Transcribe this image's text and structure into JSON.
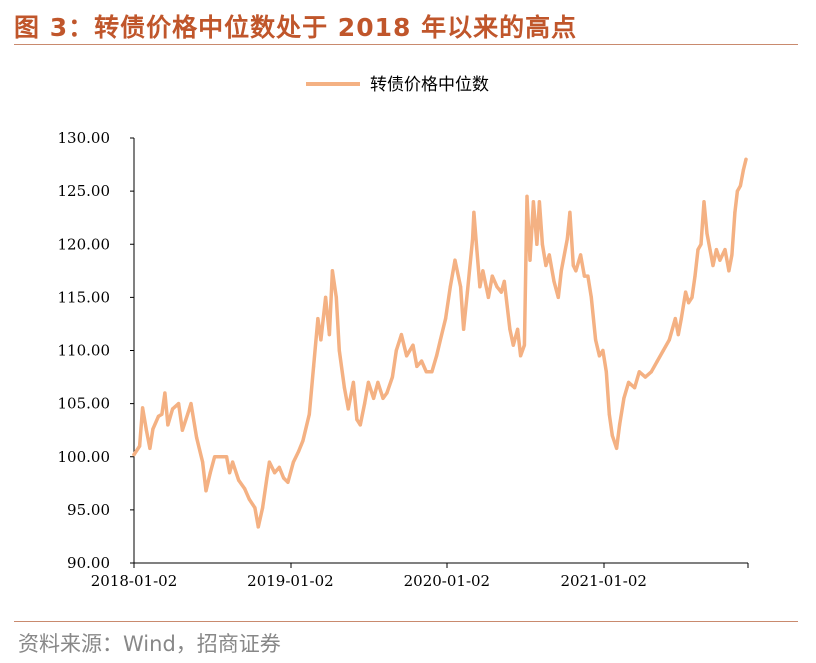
{
  "figure": {
    "title": "图 3：转债价格中位数处于 2018 年以来的高点",
    "source": "资料来源：Wind，招商证券"
  },
  "colors": {
    "accent": "#c0562b",
    "line": "#f4b183",
    "rule": "#c98a6e",
    "source_text": "#888888"
  },
  "chart_data": {
    "type": "line",
    "title": "",
    "xlabel": "",
    "ylabel": "",
    "ylim": [
      90,
      130
    ],
    "yticks": [
      "90.00",
      "95.00",
      "100.00",
      "105.00",
      "110.00",
      "115.00",
      "120.00",
      "125.00",
      "130.00"
    ],
    "xticks": [
      "2018-01-02",
      "2019-01-02",
      "2020-01-02",
      "2021-01-02"
    ],
    "legend_position": "top-center",
    "grid": false,
    "series": [
      {
        "name": "转债价格中位数",
        "points": [
          [
            "2018-01-02",
            100.2
          ],
          [
            "2018-01-15",
            101.0
          ],
          [
            "2018-01-22",
            104.6
          ],
          [
            "2018-01-31",
            102.5
          ],
          [
            "2018-02-08",
            100.8
          ],
          [
            "2018-02-15",
            102.6
          ],
          [
            "2018-02-28",
            103.8
          ],
          [
            "2018-03-08",
            104.0
          ],
          [
            "2018-03-15",
            106.0
          ],
          [
            "2018-03-22",
            103.0
          ],
          [
            "2018-04-02",
            104.5
          ],
          [
            "2018-04-16",
            105.0
          ],
          [
            "2018-04-25",
            102.5
          ],
          [
            "2018-05-07",
            104.0
          ],
          [
            "2018-05-15",
            105.0
          ],
          [
            "2018-05-28",
            101.8
          ],
          [
            "2018-06-11",
            99.5
          ],
          [
            "2018-06-19",
            96.8
          ],
          [
            "2018-06-29",
            98.5
          ],
          [
            "2018-07-09",
            100.0
          ],
          [
            "2018-07-23",
            100.0
          ],
          [
            "2018-08-06",
            100.0
          ],
          [
            "2018-08-13",
            98.5
          ],
          [
            "2018-08-20",
            99.5
          ],
          [
            "2018-09-03",
            97.8
          ],
          [
            "2018-09-17",
            97.0
          ],
          [
            "2018-09-28",
            96.0
          ],
          [
            "2018-10-11",
            95.2
          ],
          [
            "2018-10-19",
            93.4
          ],
          [
            "2018-10-29",
            95.2
          ],
          [
            "2018-11-08",
            98.0
          ],
          [
            "2018-11-14",
            99.5
          ],
          [
            "2018-11-26",
            98.5
          ],
          [
            "2018-12-07",
            99.0
          ],
          [
            "2018-12-17",
            98.0
          ],
          [
            "2018-12-27",
            97.6
          ],
          [
            "2019-01-09",
            99.5
          ],
          [
            "2019-01-21",
            100.5
          ],
          [
            "2019-01-31",
            101.5
          ],
          [
            "2019-02-15",
            104.0
          ],
          [
            "2019-02-25",
            108.5
          ],
          [
            "2019-03-07",
            113.0
          ],
          [
            "2019-03-14",
            111.0
          ],
          [
            "2019-03-25",
            115.0
          ],
          [
            "2019-04-03",
            111.5
          ],
          [
            "2019-04-10",
            117.5
          ],
          [
            "2019-04-19",
            115.0
          ],
          [
            "2019-04-26",
            110.0
          ],
          [
            "2019-05-08",
            106.5
          ],
          [
            "2019-05-17",
            104.5
          ],
          [
            "2019-05-29",
            107.0
          ],
          [
            "2019-06-06",
            103.5
          ],
          [
            "2019-06-14",
            103.0
          ],
          [
            "2019-06-24",
            105.0
          ],
          [
            "2019-07-03",
            107.0
          ],
          [
            "2019-07-15",
            105.5
          ],
          [
            "2019-07-25",
            107.0
          ],
          [
            "2019-08-06",
            105.5
          ],
          [
            "2019-08-15",
            106.0
          ],
          [
            "2019-08-28",
            107.5
          ],
          [
            "2019-09-06",
            110.0
          ],
          [
            "2019-09-18",
            111.5
          ],
          [
            "2019-09-30",
            109.5
          ],
          [
            "2019-10-15",
            110.5
          ],
          [
            "2019-10-24",
            108.5
          ],
          [
            "2019-11-04",
            109.0
          ],
          [
            "2019-11-15",
            108.0
          ],
          [
            "2019-11-28",
            108.0
          ],
          [
            "2019-12-09",
            109.5
          ],
          [
            "2019-12-18",
            111.0
          ],
          [
            "2019-12-30",
            113.0
          ],
          [
            "2020-01-10",
            116.0
          ],
          [
            "2020-01-21",
            118.5
          ],
          [
            "2020-02-03",
            116.0
          ],
          [
            "2020-02-10",
            112.0
          ],
          [
            "2020-02-19",
            115.5
          ],
          [
            "2020-03-02",
            120.5
          ],
          [
            "2020-03-05",
            123.0
          ],
          [
            "2020-03-11",
            120.0
          ],
          [
            "2020-03-19",
            116.0
          ],
          [
            "2020-03-26",
            117.5
          ],
          [
            "2020-04-08",
            115.0
          ],
          [
            "2020-04-17",
            117.0
          ],
          [
            "2020-04-28",
            116.0
          ],
          [
            "2020-05-08",
            115.5
          ],
          [
            "2020-05-15",
            116.5
          ],
          [
            "2020-05-28",
            112.0
          ],
          [
            "2020-06-05",
            110.5
          ],
          [
            "2020-06-15",
            112.0
          ],
          [
            "2020-06-22",
            109.5
          ],
          [
            "2020-07-01",
            110.5
          ],
          [
            "2020-07-07",
            124.5
          ],
          [
            "2020-07-14",
            118.5
          ],
          [
            "2020-07-22",
            124.0
          ],
          [
            "2020-07-30",
            120.0
          ],
          [
            "2020-08-05",
            124.0
          ],
          [
            "2020-08-12",
            120.0
          ],
          [
            "2020-08-20",
            118.0
          ],
          [
            "2020-08-28",
            119.0
          ],
          [
            "2020-09-08",
            116.5
          ],
          [
            "2020-09-18",
            115.0
          ],
          [
            "2020-09-25",
            117.5
          ],
          [
            "2020-10-09",
            120.5
          ],
          [
            "2020-10-15",
            123.0
          ],
          [
            "2020-10-23",
            118.0
          ],
          [
            "2020-10-29",
            117.5
          ],
          [
            "2020-11-09",
            119.0
          ],
          [
            "2020-11-18",
            117.0
          ],
          [
            "2020-11-26",
            117.0
          ],
          [
            "2020-12-04",
            115.0
          ],
          [
            "2020-12-14",
            111.0
          ],
          [
            "2020-12-23",
            109.5
          ],
          [
            "2020-12-31",
            110.0
          ],
          [
            "2021-01-08",
            108.0
          ],
          [
            "2021-01-15",
            104.0
          ],
          [
            "2021-01-22",
            102.0
          ],
          [
            "2021-02-01",
            100.8
          ],
          [
            "2021-02-08",
            103.0
          ],
          [
            "2021-02-18",
            105.5
          ],
          [
            "2021-03-01",
            107.0
          ],
          [
            "2021-03-15",
            106.5
          ],
          [
            "2021-03-26",
            108.0
          ],
          [
            "2021-04-09",
            107.5
          ],
          [
            "2021-04-23",
            108.0
          ],
          [
            "2021-05-07",
            109.0
          ],
          [
            "2021-05-21",
            110.0
          ],
          [
            "2021-06-04",
            111.0
          ],
          [
            "2021-06-18",
            113.0
          ],
          [
            "2021-06-25",
            111.5
          ],
          [
            "2021-07-02",
            113.0
          ],
          [
            "2021-07-12",
            115.5
          ],
          [
            "2021-07-19",
            114.5
          ],
          [
            "2021-07-27",
            115.0
          ],
          [
            "2021-08-03",
            117.0
          ],
          [
            "2021-08-10",
            119.5
          ],
          [
            "2021-08-17",
            120.0
          ],
          [
            "2021-08-24",
            124.0
          ],
          [
            "2021-08-31",
            121.0
          ],
          [
            "2021-09-07",
            119.5
          ],
          [
            "2021-09-14",
            118.0
          ],
          [
            "2021-09-22",
            119.5
          ],
          [
            "2021-09-30",
            118.5
          ],
          [
            "2021-10-12",
            119.5
          ],
          [
            "2021-10-21",
            117.5
          ],
          [
            "2021-10-28",
            119.0
          ],
          [
            "2021-11-04",
            123.0
          ],
          [
            "2021-11-10",
            125.0
          ],
          [
            "2021-11-17",
            125.5
          ],
          [
            "2021-11-24",
            127.0
          ],
          [
            "2021-11-30",
            128.0
          ]
        ]
      }
    ]
  }
}
